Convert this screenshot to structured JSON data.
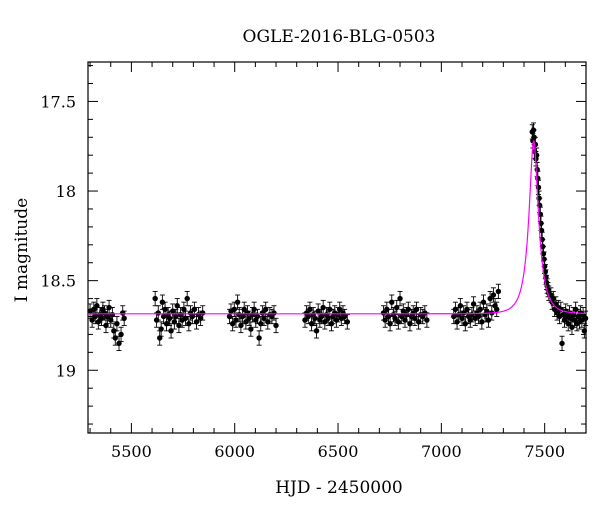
{
  "chart_data": {
    "type": "scatter",
    "title": "OGLE-2016-BLG-0503",
    "xlabel": "HJD - 2450000",
    "ylabel": "I magnitude",
    "xlim": [
      5290,
      7700
    ],
    "ylim": [
      19.35,
      17.28
    ],
    "y_inverted": true,
    "x_ticks": [
      5500,
      6000,
      6500,
      7000,
      7500
    ],
    "x_tick_labels": [
      "5500",
      "6000",
      "6500",
      "7000",
      "7500"
    ],
    "y_ticks": [
      17.5,
      18,
      18.5,
      19
    ],
    "y_tick_labels": [
      "17.5",
      "18",
      "18.5",
      "19"
    ],
    "grid": false,
    "legend": "none",
    "series": [
      {
        "kind": "points_with_errorbars",
        "color": "#000000",
        "points": [
          [
            5300,
            18.67
          ],
          [
            5310,
            18.72
          ],
          [
            5318,
            18.66
          ],
          [
            5325,
            18.7
          ],
          [
            5333,
            18.64
          ],
          [
            5340,
            18.73
          ],
          [
            5348,
            18.69
          ],
          [
            5355,
            18.71
          ],
          [
            5362,
            18.66
          ],
          [
            5370,
            18.68
          ],
          [
            5377,
            18.75
          ],
          [
            5384,
            18.7
          ],
          [
            5392,
            18.65
          ],
          [
            5400,
            18.72
          ],
          [
            5408,
            18.69
          ],
          [
            5415,
            18.78
          ],
          [
            5422,
            18.82
          ],
          [
            5430,
            18.74
          ],
          [
            5440,
            18.85
          ],
          [
            5450,
            18.8
          ],
          [
            5458,
            18.68
          ],
          [
            5465,
            18.71
          ],
          [
            5615,
            18.6
          ],
          [
            5622,
            18.72
          ],
          [
            5630,
            18.68
          ],
          [
            5637,
            18.82
          ],
          [
            5644,
            18.77
          ],
          [
            5650,
            18.62
          ],
          [
            5656,
            18.7
          ],
          [
            5663,
            18.66
          ],
          [
            5670,
            18.74
          ],
          [
            5678,
            18.69
          ],
          [
            5685,
            18.71
          ],
          [
            5692,
            18.78
          ],
          [
            5700,
            18.67
          ],
          [
            5708,
            18.73
          ],
          [
            5715,
            18.7
          ],
          [
            5722,
            18.64
          ],
          [
            5730,
            18.75
          ],
          [
            5738,
            18.69
          ],
          [
            5746,
            18.72
          ],
          [
            5754,
            18.66
          ],
          [
            5762,
            18.71
          ],
          [
            5770,
            18.6
          ],
          [
            5778,
            18.74
          ],
          [
            5786,
            18.68
          ],
          [
            5795,
            18.7
          ],
          [
            5805,
            18.66
          ],
          [
            5815,
            18.73
          ],
          [
            5825,
            18.69
          ],
          [
            5835,
            18.71
          ],
          [
            5845,
            18.68
          ],
          [
            5975,
            18.7
          ],
          [
            5982,
            18.67
          ],
          [
            5990,
            18.74
          ],
          [
            5998,
            18.66
          ],
          [
            6006,
            18.72
          ],
          [
            6014,
            18.62
          ],
          [
            6022,
            18.69
          ],
          [
            6030,
            18.75
          ],
          [
            6038,
            18.7
          ],
          [
            6046,
            18.66
          ],
          [
            6054,
            18.73
          ],
          [
            6062,
            18.68
          ],
          [
            6070,
            18.71
          ],
          [
            6078,
            18.77
          ],
          [
            6086,
            18.69
          ],
          [
            6094,
            18.66
          ],
          [
            6102,
            18.72
          ],
          [
            6110,
            18.7
          ],
          [
            6118,
            18.82
          ],
          [
            6126,
            18.74
          ],
          [
            6134,
            18.68
          ],
          [
            6142,
            18.71
          ],
          [
            6150,
            18.66
          ],
          [
            6160,
            18.73
          ],
          [
            6170,
            18.69
          ],
          [
            6180,
            18.7
          ],
          [
            6190,
            18.68
          ],
          [
            6200,
            18.75
          ],
          [
            6340,
            18.72
          ],
          [
            6348,
            18.68
          ],
          [
            6356,
            18.7
          ],
          [
            6364,
            18.66
          ],
          [
            6372,
            18.74
          ],
          [
            6380,
            18.69
          ],
          [
            6388,
            18.71
          ],
          [
            6396,
            18.78
          ],
          [
            6404,
            18.67
          ],
          [
            6412,
            18.72
          ],
          [
            6420,
            18.7
          ],
          [
            6428,
            18.65
          ],
          [
            6436,
            18.73
          ],
          [
            6444,
            18.69
          ],
          [
            6452,
            18.71
          ],
          [
            6460,
            18.66
          ],
          [
            6468,
            18.74
          ],
          [
            6476,
            18.7
          ],
          [
            6484,
            18.68
          ],
          [
            6492,
            18.72
          ],
          [
            6500,
            18.69
          ],
          [
            6508,
            18.66
          ],
          [
            6516,
            18.71
          ],
          [
            6524,
            18.68
          ],
          [
            6532,
            18.7
          ],
          [
            6545,
            18.73
          ],
          [
            6720,
            18.68
          ],
          [
            6728,
            18.72
          ],
          [
            6736,
            18.66
          ],
          [
            6744,
            18.7
          ],
          [
            6752,
            18.74
          ],
          [
            6760,
            18.62
          ],
          [
            6768,
            18.69
          ],
          [
            6776,
            18.71
          ],
          [
            6784,
            18.65
          ],
          [
            6792,
            18.73
          ],
          [
            6800,
            18.6
          ],
          [
            6808,
            18.7
          ],
          [
            6816,
            18.67
          ],
          [
            6824,
            18.72
          ],
          [
            6832,
            18.69
          ],
          [
            6840,
            18.66
          ],
          [
            6848,
            18.74
          ],
          [
            6856,
            18.7
          ],
          [
            6864,
            18.68
          ],
          [
            6872,
            18.71
          ],
          [
            6880,
            18.66
          ],
          [
            6890,
            18.73
          ],
          [
            6900,
            18.69
          ],
          [
            6910,
            18.7
          ],
          [
            6920,
            18.68
          ],
          [
            6930,
            18.72
          ],
          [
            7060,
            18.7
          ],
          [
            7068,
            18.66
          ],
          [
            7076,
            18.73
          ],
          [
            7084,
            18.69
          ],
          [
            7092,
            18.64
          ],
          [
            7100,
            18.71
          ],
          [
            7108,
            18.68
          ],
          [
            7116,
            18.74
          ],
          [
            7124,
            18.66
          ],
          [
            7132,
            18.7
          ],
          [
            7140,
            18.72
          ],
          [
            7148,
            18.69
          ],
          [
            7156,
            18.63
          ],
          [
            7164,
            18.71
          ],
          [
            7172,
            18.68
          ],
          [
            7180,
            18.7
          ],
          [
            7188,
            18.66
          ],
          [
            7196,
            18.73
          ],
          [
            7204,
            18.62
          ],
          [
            7212,
            18.69
          ],
          [
            7220,
            18.67
          ],
          [
            7228,
            18.72
          ],
          [
            7236,
            18.6
          ],
          [
            7244,
            18.68
          ],
          [
            7252,
            18.58
          ],
          [
            7260,
            18.64
          ],
          [
            7268,
            18.66
          ],
          [
            7276,
            18.56
          ],
          [
            7440,
            17.67
          ],
          [
            7443,
            17.72
          ],
          [
            7446,
            17.66
          ],
          [
            7449,
            17.7
          ],
          [
            7452,
            17.78
          ],
          [
            7455,
            17.74
          ],
          [
            7458,
            17.82
          ],
          [
            7461,
            17.8
          ],
          [
            7464,
            17.88
          ],
          [
            7467,
            17.93
          ],
          [
            7470,
            17.98
          ],
          [
            7473,
            18.04
          ],
          [
            7476,
            18.08
          ],
          [
            7479,
            18.13
          ],
          [
            7482,
            18.18
          ],
          [
            7485,
            18.22
          ],
          [
            7488,
            18.27
          ],
          [
            7491,
            18.31
          ],
          [
            7494,
            18.35
          ],
          [
            7497,
            18.38
          ],
          [
            7500,
            18.42
          ],
          [
            7503,
            18.45
          ],
          [
            7506,
            18.48
          ],
          [
            7509,
            18.51
          ],
          [
            7512,
            18.53
          ],
          [
            7516,
            18.55
          ],
          [
            7520,
            18.57
          ],
          [
            7530,
            18.58
          ],
          [
            7536,
            18.62
          ],
          [
            7542,
            18.6
          ],
          [
            7548,
            18.66
          ],
          [
            7554,
            18.63
          ],
          [
            7560,
            18.68
          ],
          [
            7566,
            18.65
          ],
          [
            7572,
            18.7
          ],
          [
            7578,
            18.66
          ],
          [
            7584,
            18.85
          ],
          [
            7590,
            18.69
          ],
          [
            7596,
            18.72
          ],
          [
            7602,
            18.67
          ],
          [
            7608,
            18.7
          ],
          [
            7614,
            18.74
          ],
          [
            7620,
            18.68
          ],
          [
            7626,
            18.71
          ],
          [
            7632,
            18.76
          ],
          [
            7638,
            18.69
          ],
          [
            7644,
            18.72
          ],
          [
            7650,
            18.66
          ],
          [
            7656,
            18.74
          ],
          [
            7662,
            18.7
          ],
          [
            7668,
            18.73
          ],
          [
            7674,
            18.68
          ],
          [
            7680,
            18.72
          ],
          [
            7686,
            18.69
          ],
          [
            7692,
            18.78
          ],
          [
            7698,
            18.71
          ]
        ],
        "error": 0.04
      },
      {
        "kind": "model_curve",
        "color": "#ff00ff",
        "baseline": 18.685,
        "peak": 17.72,
        "t0": 7447,
        "tE": 55,
        "u0": 0.41
      }
    ]
  }
}
